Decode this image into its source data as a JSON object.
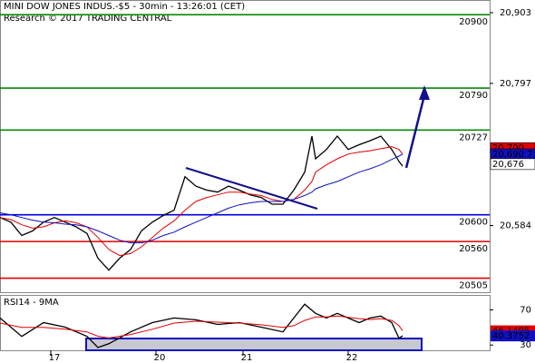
{
  "chart_data": [
    {
      "type": "line",
      "title": "MINI DOW JONES INDUS.-$5 - 30min - 13:26:01 (CET)",
      "subtitle": "Research © 2017 TRADING CENTRAL",
      "xlim": [
        0,
        135
      ],
      "x": [
        0,
        3,
        6,
        9,
        12,
        15,
        18,
        21,
        24,
        27,
        30,
        33,
        36,
        39,
        42,
        45,
        48,
        51,
        54,
        57,
        60,
        63,
        66,
        69,
        72,
        75,
        78,
        81,
        84,
        86,
        87,
        90,
        93,
        96,
        99,
        102,
        105,
        108,
        110,
        111
      ],
      "series": [
        {
          "color": "#000000",
          "values": [
            20596,
            20589,
            20569,
            20576,
            20589,
            20596,
            20589,
            20582,
            20572,
            20535,
            20517,
            20535,
            20548,
            20576,
            20589,
            20599,
            20607,
            20657,
            20643,
            20637,
            20634,
            20643,
            20637,
            20630,
            20626,
            20616,
            20616,
            20637,
            20664,
            20718,
            20684,
            20698,
            20718,
            20698,
            20705,
            20711,
            20718,
            20698,
            20680,
            20673
          ]
        },
        {
          "color": "#e00000",
          "values": [
            20596,
            20593,
            20585,
            20580,
            20582,
            20588,
            20591,
            20588,
            20582,
            20566,
            20548,
            20539,
            20542,
            20552,
            20566,
            20580,
            20591,
            20607,
            20620,
            20626,
            20630,
            20634,
            20634,
            20631,
            20629,
            20623,
            20620,
            20623,
            20637,
            20650,
            20664,
            20675,
            20684,
            20691,
            20694,
            20696,
            20699,
            20702,
            20698,
            20691
          ]
        },
        {
          "color": "#1010c0",
          "values": [
            20603,
            20600,
            20596,
            20592,
            20589,
            20588,
            20586,
            20585,
            20582,
            20576,
            20569,
            20562,
            20558,
            20558,
            20562,
            20569,
            20574,
            20582,
            20589,
            20596,
            20603,
            20610,
            20615,
            20618,
            20620,
            20620,
            20620,
            20623,
            20629,
            20634,
            20639,
            20645,
            20650,
            20657,
            20664,
            20669,
            20675,
            20683,
            20688,
            20691
          ]
        }
      ],
      "levels": [
        {
          "value": 20900,
          "color": "#0a8a0a"
        },
        {
          "value": 20790,
          "color": "#0a8a0a"
        },
        {
          "value": 20727,
          "color": "#0a8a0a"
        },
        {
          "value": 20600,
          "color": "#0000e0"
        },
        {
          "value": 20560,
          "color": "#e00000"
        },
        {
          "value": 20505,
          "color": "#e00000"
        }
      ],
      "ylim": [
        20484,
        20922
      ],
      "yticks": [
        {
          "value": 20903,
          "label": "20,903"
        },
        {
          "value": 20797,
          "label": "20,797"
        },
        {
          "value": 20584,
          "label": "20,584"
        }
      ],
      "price_tags": [
        {
          "value": 20700,
          "label": "20,700",
          "color": "#e00000"
        },
        {
          "value": 20690.7,
          "label": "20,690.7",
          "color": "#1010c0"
        },
        {
          "value": 20676,
          "label": "20,676",
          "color": "#ffffff"
        }
      ]
    },
    {
      "type": "line",
      "title": "RSI14 - 9MA",
      "xlim": [
        0,
        135
      ],
      "x": [
        0,
        6,
        12,
        18,
        24,
        27,
        30,
        36,
        42,
        48,
        54,
        60,
        66,
        72,
        78,
        81,
        84,
        87,
        90,
        93,
        99,
        102,
        105,
        108,
        110,
        111
      ],
      "series": [
        {
          "color": "#000000",
          "values": [
            60.8,
            39.8,
            55.5,
            50.3,
            39.8,
            27.2,
            31.4,
            45,
            55.5,
            60.8,
            58.7,
            53.4,
            55.5,
            50.3,
            45,
            60.8,
            76.5,
            66,
            60.8,
            66,
            55.5,
            60.8,
            62.9,
            55.5,
            37.7,
            40.3752
          ]
        },
        {
          "color": "#e00000",
          "values": [
            55,
            50,
            50,
            48,
            45,
            40,
            38,
            42,
            48,
            55,
            57,
            56,
            55,
            53,
            50,
            52,
            58,
            62,
            62,
            63,
            60,
            59,
            60,
            58,
            52,
            46.1495
          ]
        }
      ],
      "ylim": [
        24,
        87
      ],
      "yticks": [
        70,
        30
      ],
      "tags": [
        {
          "value": 46.1495,
          "color": "#e00000"
        },
        {
          "value": 40.3752,
          "color": "#1010c0"
        }
      ],
      "xticks": [
        {
          "value": 14,
          "label": "17"
        },
        {
          "value": 43,
          "label": "20"
        },
        {
          "value": 67,
          "label": "21"
        },
        {
          "value": 96,
          "label": "22"
        }
      ]
    }
  ]
}
